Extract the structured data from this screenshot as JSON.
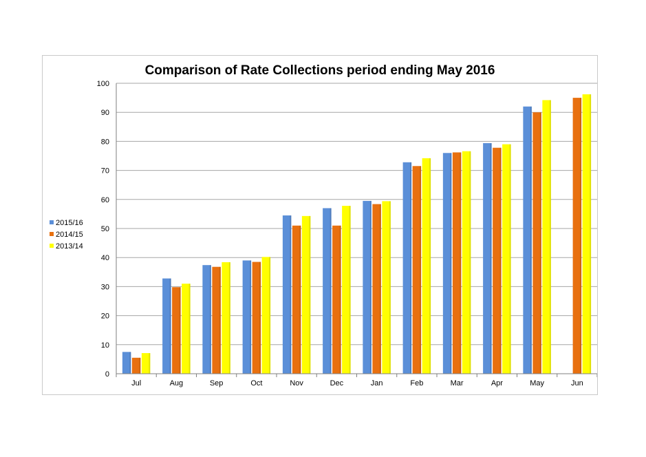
{
  "chart_data": {
    "type": "bar",
    "title": "Comparison of Rate Collections period ending May 2016",
    "xlabel": "",
    "ylabel": "",
    "ylim": [
      0,
      100
    ],
    "yticks": [
      0,
      10,
      20,
      30,
      40,
      50,
      60,
      70,
      80,
      90,
      100
    ],
    "grid": true,
    "legend_position": "left",
    "categories": [
      "Jul",
      "Aug",
      "Sep",
      "Oct",
      "Nov",
      "Dec",
      "Jan",
      "Feb",
      "Mar",
      "Apr",
      "May",
      "Jun"
    ],
    "series": [
      {
        "name": "2015/16",
        "color": "#5B8FD8",
        "values": [
          7.5,
          32.8,
          37.4,
          39,
          54.5,
          57,
          59.5,
          72.8,
          76,
          79.4,
          92,
          null
        ]
      },
      {
        "name": "2014/15",
        "color": "#E8700F",
        "values": [
          5.5,
          29.8,
          36.8,
          38.5,
          51,
          51,
          58.4,
          71.5,
          76.2,
          77.8,
          90,
          95
        ]
      },
      {
        "name": "2013/14",
        "color": "#FFFF00",
        "values": [
          7.1,
          31,
          38.4,
          40.2,
          54.3,
          57.8,
          59.4,
          74.2,
          76.6,
          79,
          94.2,
          96.2
        ]
      }
    ]
  }
}
